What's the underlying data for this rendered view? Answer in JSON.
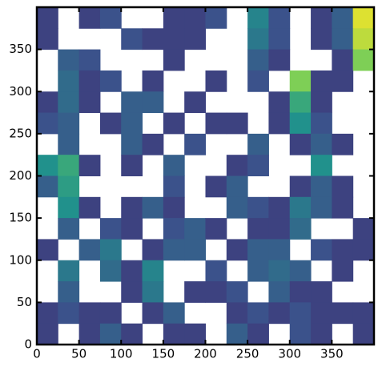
{
  "chart_data": {
    "type": "image",
    "colormap": "viridis",
    "zlim": [
      0,
      1
    ],
    "xlim": [
      0,
      400
    ],
    "ylim": [
      0,
      400
    ],
    "xticks": [
      0,
      50,
      100,
      150,
      200,
      250,
      300,
      350
    ],
    "yticks": [
      0,
      50,
      100,
      150,
      200,
      250,
      300,
      350
    ],
    "z": [
      [
        0.2,
        null,
        0.2,
        0.25,
        null,
        null,
        0.2,
        0.2,
        0.25,
        null,
        0.45,
        0.25,
        null,
        0.2,
        0.3,
        0.95
      ],
      [
        0.2,
        null,
        null,
        null,
        0.25,
        0.2,
        0.2,
        0.2,
        null,
        null,
        0.4,
        0.25,
        null,
        0.2,
        0.3,
        0.9
      ],
      [
        null,
        0.3,
        0.25,
        null,
        null,
        null,
        0.2,
        null,
        null,
        null,
        0.3,
        0.2,
        null,
        null,
        0.2,
        0.8
      ],
      [
        null,
        0.35,
        0.2,
        0.25,
        null,
        0.2,
        null,
        null,
        0.2,
        null,
        0.25,
        null,
        0.8,
        0.2,
        0.2,
        null
      ],
      [
        0.2,
        0.35,
        0.2,
        null,
        0.3,
        0.3,
        null,
        0.2,
        null,
        null,
        null,
        0.2,
        0.6,
        0.2,
        null,
        null
      ],
      [
        0.25,
        0.3,
        null,
        0.2,
        0.3,
        null,
        0.2,
        null,
        0.2,
        0.2,
        null,
        0.2,
        0.5,
        0.25,
        null,
        null
      ],
      [
        null,
        0.3,
        null,
        null,
        0.3,
        0.2,
        null,
        0.25,
        null,
        null,
        0.3,
        null,
        0.2,
        0.3,
        0.2,
        null
      ],
      [
        0.5,
        0.6,
        0.2,
        null,
        0.2,
        null,
        0.3,
        null,
        null,
        0.2,
        0.25,
        null,
        null,
        0.5,
        null,
        null
      ],
      [
        0.3,
        0.55,
        null,
        null,
        null,
        null,
        0.25,
        null,
        0.2,
        0.3,
        null,
        null,
        0.2,
        0.3,
        0.2,
        null
      ],
      [
        null,
        0.5,
        0.2,
        null,
        0.2,
        0.3,
        0.2,
        null,
        null,
        0.3,
        0.25,
        0.2,
        0.4,
        0.3,
        0.2,
        null
      ],
      [
        null,
        0.3,
        null,
        0.25,
        0.2,
        null,
        0.25,
        0.3,
        0.2,
        null,
        0.2,
        0.2,
        0.35,
        null,
        null,
        0.2
      ],
      [
        0.2,
        null,
        0.3,
        0.4,
        null,
        0.2,
        0.3,
        0.3,
        null,
        0.2,
        0.3,
        0.3,
        null,
        0.25,
        0.2,
        0.2
      ],
      [
        null,
        0.4,
        null,
        0.35,
        0.2,
        0.45,
        null,
        null,
        0.25,
        null,
        0.3,
        0.35,
        0.3,
        null,
        0.2,
        null
      ],
      [
        null,
        0.3,
        null,
        null,
        0.2,
        0.4,
        null,
        0.2,
        0.2,
        0.25,
        null,
        0.3,
        0.2,
        0.2,
        null,
        null
      ],
      [
        0.2,
        0.25,
        0.2,
        0.2,
        null,
        0.2,
        0.3,
        null,
        null,
        0.2,
        0.25,
        0.2,
        0.25,
        0.2,
        0.2,
        0.2
      ],
      [
        0.2,
        null,
        0.2,
        0.3,
        0.2,
        null,
        0.2,
        0.2,
        null,
        0.3,
        0.2,
        null,
        0.25,
        0.2,
        null,
        0.2
      ]
    ]
  }
}
